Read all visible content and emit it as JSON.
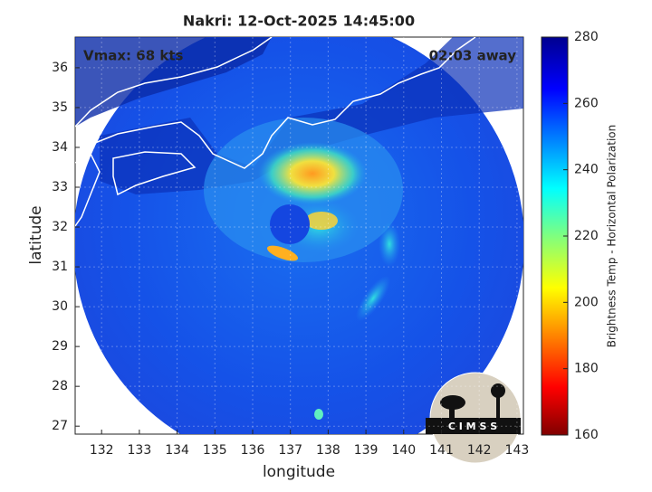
{
  "title": "Nakri: 12-Oct-2025 14:45:00",
  "annotations": {
    "vmax": "Vmax: 68 kts",
    "away": "02:03 away"
  },
  "axes": {
    "xlabel": "longitude",
    "ylabel": "latitude",
    "xlim": [
      131.3,
      143.17
    ],
    "xticks": [
      132,
      133,
      134,
      135,
      136,
      137,
      138,
      139,
      140,
      141,
      142,
      143
    ],
    "ylim": [
      26.8,
      36.77
    ],
    "yticks": [
      27,
      28,
      29,
      30,
      31,
      32,
      33,
      34,
      35,
      36
    ]
  },
  "colorbar": {
    "label": "Brightness Temp - Horizontal Polarization",
    "lim": [
      160,
      280
    ],
    "ticks": [
      160,
      180,
      200,
      220,
      240,
      260,
      280
    ]
  },
  "logo": "C I M S S"
}
